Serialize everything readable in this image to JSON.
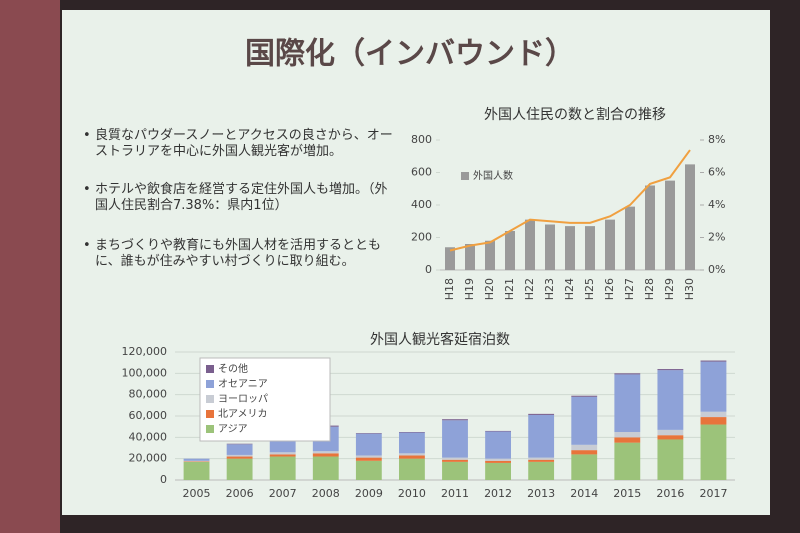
{
  "slide": {
    "title": "国際化（インバウンド）",
    "bullets": [
      "良質なパウダースノーとアクセスの良さから、オーストラリアを中心に外国人観光客が増加。",
      "ホテルや飲食店を経営する定住外国人も増加。（外国人住民割合7.38%：県内1位）",
      "まちづくりや教育にも外国人材を活用するとともに、誰もが住みやすい村づくりに取り組む。"
    ]
  },
  "chart_data": [
    {
      "type": "bar",
      "title": "外国人住民の数と割合の推移",
      "categories": [
        "H18",
        "H19",
        "H20",
        "H21",
        "H22",
        "H23",
        "H24",
        "H25",
        "H26",
        "H27",
        "H28",
        "H29",
        "H30"
      ],
      "series": [
        {
          "name": "外国人数",
          "color": "#9a9a9a",
          "values": [
            140,
            160,
            180,
            240,
            310,
            280,
            270,
            270,
            310,
            390,
            520,
            550,
            650
          ]
        },
        {
          "type": "line",
          "axis": "y2",
          "color": "#f0a040",
          "values": [
            1.2,
            1.5,
            1.7,
            2.4,
            3.1,
            3.0,
            2.9,
            2.9,
            3.3,
            4.0,
            5.3,
            5.7,
            7.38
          ]
        }
      ],
      "ylim": [
        0,
        800
      ],
      "yticks": [
        0,
        200,
        400,
        600,
        800
      ],
      "y2lim": [
        0,
        8
      ],
      "y2ticks": [
        {
          "value": 0,
          "label": "0%"
        },
        {
          "value": 2,
          "label": "2%"
        },
        {
          "value": 4,
          "label": "4%"
        },
        {
          "value": 6,
          "label": "6%"
        },
        {
          "value": 8,
          "label": "8%"
        }
      ],
      "grid": false,
      "legend": "upper left"
    },
    {
      "type": "stacked_bar",
      "title": "外国人観光客延宿泊数",
      "categories": [
        "2005",
        "2006",
        "2007",
        "2008",
        "2009",
        "2010",
        "2011",
        "2012",
        "2013",
        "2014",
        "2015",
        "2016",
        "2017"
      ],
      "series": [
        {
          "name": "アジア",
          "color": "#9cc37a",
          "values": [
            17000,
            20000,
            22000,
            22000,
            18000,
            20000,
            17000,
            16000,
            17000,
            24000,
            35000,
            38000,
            52000
          ]
        },
        {
          "name": "北アメリカ",
          "color": "#e8743b",
          "values": [
            500,
            2000,
            2000,
            3000,
            3000,
            3000,
            2000,
            2000,
            2000,
            4000,
            5000,
            4000,
            7000
          ]
        },
        {
          "name": "ヨーロッパ",
          "color": "#c8ccd4",
          "values": [
            500,
            1500,
            2000,
            2000,
            2000,
            2000,
            2000,
            2000,
            2000,
            5000,
            5000,
            5000,
            5000
          ]
        },
        {
          "name": "オセアニア",
          "color": "#8ea2d8",
          "values": [
            2000,
            10000,
            15500,
            23000,
            20500,
            19500,
            35000,
            25500,
            40000,
            45000,
            54000,
            56000,
            47000
          ]
        },
        {
          "name": "その他",
          "color": "#7a5f8e",
          "values": [
            0,
            500,
            500,
            1000,
            500,
            500,
            1000,
            500,
            1000,
            1000,
            1000,
            1000,
            1000
          ]
        }
      ],
      "ylim": [
        0,
        120000
      ],
      "yticks": [
        {
          "value": 0,
          "label": "0"
        },
        {
          "value": 20000,
          "label": "20,000"
        },
        {
          "value": 40000,
          "label": "40,000"
        },
        {
          "value": 60000,
          "label": "60,000"
        },
        {
          "value": 80000,
          "label": "80,000"
        },
        {
          "value": 100000,
          "label": "100,000"
        },
        {
          "value": 120000,
          "label": "120,000"
        }
      ],
      "grid": true,
      "legend": "upper left"
    }
  ]
}
